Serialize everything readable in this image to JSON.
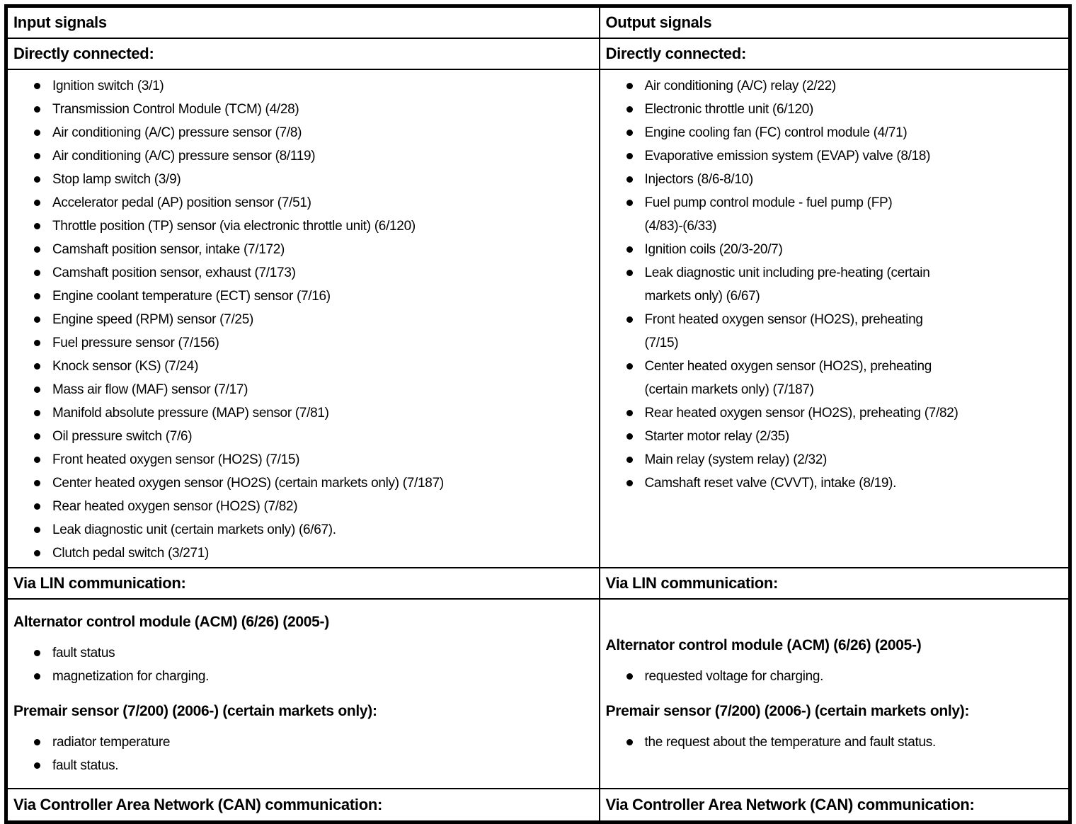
{
  "table": {
    "colors": {
      "border": "#000000",
      "text": "#000000",
      "background": "#ffffff"
    },
    "input": {
      "header": "Input signals",
      "direct_label": "Directly connected:",
      "direct_items": [
        "Ignition switch (3/1)",
        "Transmission Control Module (TCM) (4/28)",
        "Air conditioning (A/C) pressure sensor (7/8)",
        "Air conditioning (A/C) pressure sensor (8/119)",
        "Stop lamp switch (3/9)",
        "Accelerator pedal (AP) position sensor (7/51)",
        "Throttle position (TP) sensor (via electronic throttle unit) (6/120)",
        "Camshaft position sensor, intake (7/172)",
        "Camshaft position sensor, exhaust (7/173)",
        "Engine coolant temperature (ECT) sensor (7/16)",
        "Engine speed (RPM) sensor (7/25)",
        "Fuel pressure sensor (7/156)",
        "Knock sensor (KS) (7/24)",
        "Mass air flow (MAF) sensor (7/17)",
        "Manifold absolute pressure (MAP) sensor (7/81)",
        "Oil pressure switch (7/6)",
        "Front heated oxygen sensor (HO2S) (7/15)",
        "Center heated oxygen sensor (HO2S) (certain markets only) (7/187)",
        "Rear heated oxygen sensor (HO2S) (7/82)",
        "Leak diagnostic unit (certain markets only) (6/67).",
        "Clutch pedal switch (3/271)"
      ],
      "lin_label": "Via LIN communication:",
      "lin_group1_heading": "Alternator control module (ACM) (6/26) (2005-)",
      "lin_group1_items": [
        "fault status",
        "magnetization for charging."
      ],
      "lin_group2_heading": "Premair sensor (7/200) (2006-) (certain markets only):",
      "lin_group2_items": [
        "radiator temperature",
        "fault status."
      ],
      "can_label": "Via Controller Area Network (CAN) communication:"
    },
    "output": {
      "header": "Output signals",
      "direct_label": "Directly connected:",
      "direct_items": [
        "Air conditioning (A/C) relay (2/22)",
        "Electronic throttle unit (6/120)",
        "Engine cooling fan (FC) control module (4/71)",
        "Evaporative emission system (EVAP) valve (8/18)",
        "Injectors (8/6-8/10)",
        "Fuel pump control module - fuel pump (FP)\n(4/83)-(6/33)",
        "Ignition coils (20/3-20/7)",
        "Leak diagnostic unit including pre-heating (certain\nmarkets only) (6/67)",
        "Front heated oxygen sensor (HO2S), preheating\n(7/15)",
        "Center heated oxygen sensor (HO2S), preheating\n(certain markets only) (7/187)",
        "Rear heated oxygen sensor (HO2S), preheating (7/82)",
        "Starter motor relay (2/35)",
        "Main relay (system relay) (2/32)",
        "Camshaft reset valve (CVVT), intake (8/19)."
      ],
      "lin_label": "Via LIN communication:",
      "lin_group1_heading": "Alternator control module (ACM) (6/26) (2005-)",
      "lin_group1_items": [
        "requested voltage for charging."
      ],
      "lin_group2_heading": "Premair sensor (7/200) (2006-) (certain markets only):",
      "lin_group2_items": [
        "the request about the temperature and fault status."
      ],
      "can_label": "Via Controller Area Network (CAN) communication:"
    }
  }
}
